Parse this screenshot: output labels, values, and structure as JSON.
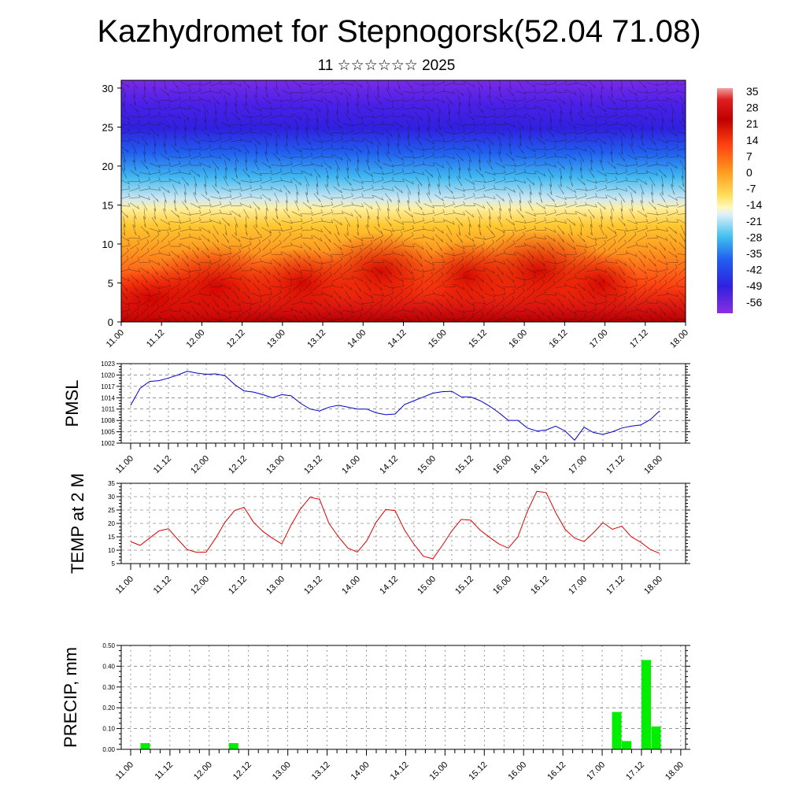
{
  "header": {
    "title": "Kazhydromet for Stepnogorsk(52.04 71.08)",
    "subtitle": "11 ☆☆☆☆☆☆ 2025"
  },
  "time_labels": [
    "11.00",
    "11.12",
    "12.00",
    "12.12",
    "13.00",
    "13.12",
    "14.00",
    "14.12",
    "15.00",
    "15.12",
    "16.00",
    "16.12",
    "17.00",
    "17.12",
    "18.00"
  ],
  "chart_data": [
    {
      "type": "heatmap",
      "title": "",
      "xlabel": "",
      "ylabel": "",
      "categories": [
        "11.00",
        "11.12",
        "12.00",
        "12.12",
        "13.00",
        "13.12",
        "14.00",
        "14.12",
        "15.00",
        "15.12",
        "16.00",
        "16.12",
        "17.00",
        "17.12",
        "18.00"
      ],
      "ylim": [
        0,
        31
      ],
      "yticks": [
        0,
        5,
        10,
        15,
        20,
        25,
        30
      ],
      "colorbar": {
        "labels": [
          "35",
          "28",
          "21",
          "14",
          "7",
          "0",
          "-7",
          "-14",
          "-21",
          "-28",
          "-35",
          "-42",
          "-49",
          "-56"
        ],
        "range": [
          -60,
          37
        ]
      },
      "overlay": "wind barbs",
      "grid": false
    },
    {
      "type": "line",
      "title": "",
      "ylabel": "PMSL",
      "xlabel": "",
      "categories": [
        "11.00",
        "11.12",
        "12.00",
        "12.12",
        "13.00",
        "13.12",
        "14.00",
        "14.12",
        "15.00",
        "15.12",
        "16.00",
        "16.12",
        "17.00",
        "17.12",
        "18.00"
      ],
      "ylim": [
        1002,
        1023
      ],
      "yticks": [
        1002,
        1005,
        1008,
        1011,
        1014,
        1017,
        1020,
        1023
      ],
      "grid": true,
      "color": "#0000cc",
      "series": [
        {
          "x": [
            0,
            3,
            6,
            9,
            12,
            15,
            18,
            21,
            24,
            27,
            30,
            33,
            36,
            39,
            42,
            45,
            48,
            51,
            54,
            57,
            60,
            63,
            66,
            69,
            72,
            75,
            78,
            81,
            84,
            87,
            90,
            93,
            96,
            99,
            102,
            105,
            108,
            111,
            114,
            117,
            120,
            123,
            126,
            129,
            132,
            135,
            138,
            141,
            144,
            147,
            150,
            153,
            156,
            159,
            162,
            165,
            168
          ],
          "values": [
            1012,
            1016.5,
            1018.3,
            1018.5,
            1019.2,
            1020,
            1021,
            1020.5,
            1020.2,
            1020.3,
            1019.8,
            1017.5,
            1015.8,
            1015.5,
            1014.8,
            1014,
            1014.8,
            1014.5,
            1012.5,
            1011,
            1010.5,
            1011.5,
            1012,
            1011.5,
            1011,
            1011,
            1010,
            1009.5,
            1009.7,
            1012.2,
            1013.2,
            1014.2,
            1015.2,
            1015.6,
            1015.7,
            1014.2,
            1014.2,
            1013.2,
            1011.8,
            1010,
            1008,
            1008,
            1006,
            1005.2,
            1005.5,
            1006.5,
            1005.2,
            1002.8,
            1006.2,
            1004.8,
            1004.3,
            1005,
            1006,
            1006.5,
            1006.8,
            1008.2,
            1010.5
          ]
        }
      ]
    },
    {
      "type": "line",
      "title": "",
      "ylabel": "TEMP at 2 M",
      "xlabel": "",
      "categories": [
        "11.00",
        "11.12",
        "12.00",
        "12.12",
        "13.00",
        "13.12",
        "14.00",
        "14.12",
        "15.00",
        "15.12",
        "16.00",
        "16.12",
        "17.00",
        "17.12",
        "18.00"
      ],
      "ylim": [
        5,
        35
      ],
      "yticks": [
        5,
        10,
        15,
        20,
        25,
        30,
        35
      ],
      "grid": true,
      "color": "#dd0000",
      "series": [
        {
          "x": [
            0,
            3,
            6,
            9,
            12,
            15,
            18,
            21,
            24,
            27,
            30,
            33,
            36,
            39,
            42,
            45,
            48,
            51,
            54,
            57,
            60,
            63,
            66,
            69,
            72,
            75,
            78,
            81,
            84,
            87,
            90,
            93,
            96,
            99,
            102,
            105,
            108,
            111,
            114,
            117,
            120,
            123,
            126,
            129,
            132,
            135,
            138,
            141,
            144,
            147,
            150,
            153,
            156,
            159,
            162,
            165,
            168
          ],
          "values": [
            13.2,
            11.8,
            14.5,
            17.2,
            18,
            14,
            10.2,
            9.2,
            9.3,
            14.5,
            20.5,
            24.8,
            26,
            20.5,
            17,
            14.5,
            12.3,
            19.5,
            25.5,
            29.8,
            29,
            20,
            15,
            10.8,
            9.3,
            13.5,
            20.5,
            25.2,
            24.8,
            17.5,
            12.2,
            7.7,
            6.8,
            11.8,
            17.2,
            21.5,
            21.2,
            17.5,
            14.8,
            12.3,
            10.8,
            15,
            24.5,
            32,
            31.5,
            24,
            17.8,
            14.5,
            13.2,
            16.5,
            20.3,
            17.8,
            19,
            15,
            13,
            10.3,
            8.8
          ]
        }
      ]
    },
    {
      "type": "bar",
      "title": "",
      "ylabel": "PRECIP, mm",
      "xlabel": "",
      "categories": [
        "11.00",
        "11.12",
        "12.00",
        "12.12",
        "13.00",
        "13.12",
        "14.00",
        "14.12",
        "15.00",
        "15.12",
        "16.00",
        "16.12",
        "17.00",
        "17.12",
        "18.00"
      ],
      "ylim": [
        0,
        0.5
      ],
      "yticks": [
        "0.00",
        "0.10",
        "0.20",
        "0.30",
        "0.40",
        "0.50"
      ],
      "grid": true,
      "color": "#00ee00",
      "series": [
        {
          "x": [
            3,
            30,
            147,
            150,
            156,
            159
          ],
          "values": [
            0.03,
            0.03,
            0.18,
            0.04,
            0.43,
            0.11
          ]
        }
      ]
    }
  ]
}
